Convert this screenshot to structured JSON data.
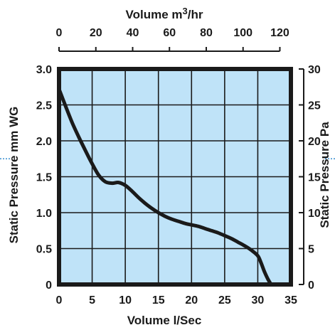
{
  "chart_data": {
    "type": "line",
    "title": "",
    "xlabel": "Volume l/Sec",
    "ylabel": "Static Pressure mm WG",
    "x2label_prefix": "Volume m",
    "x2label_sup": "3",
    "x2label_suffix": "/hr",
    "y2label": "Static Pressure Pa",
    "xlim": [
      0,
      35
    ],
    "ylim": [
      0,
      3.0
    ],
    "x2lim": [
      0,
      126
    ],
    "y2lim": [
      0,
      30
    ],
    "xticks": [
      0,
      5,
      10,
      15,
      20,
      25,
      30,
      35
    ],
    "yticks": [
      0,
      0.5,
      1.0,
      1.5,
      2.0,
      2.5,
      3.0
    ],
    "x2ticks": [
      0,
      20,
      40,
      60,
      80,
      100,
      120
    ],
    "y2ticks": [
      0,
      5,
      10,
      15,
      20,
      25,
      30
    ],
    "xtick_labels": [
      "0",
      "5",
      "10",
      "15",
      "20",
      "25",
      "30",
      "35"
    ],
    "ytick_labels": [
      "0",
      "0.5",
      "1.0",
      "1.5",
      "2.0",
      "2.5",
      "3.0"
    ],
    "x2tick_labels": [
      "0",
      "20",
      "40",
      "60",
      "80",
      "100",
      "120"
    ],
    "y2tick_labels": [
      "0",
      "5",
      "10",
      "15",
      "20",
      "25",
      "30"
    ],
    "grid": true,
    "series": [
      {
        "x": [
          0,
          1,
          2,
          3,
          4,
          5,
          6,
          7,
          8,
          9,
          10,
          11,
          12,
          13,
          14,
          15,
          16,
          17,
          18,
          19,
          20,
          21,
          22,
          23,
          24,
          25,
          26,
          27,
          28,
          29,
          30,
          30.5,
          31,
          31.5,
          32
        ],
        "y": [
          2.72,
          2.48,
          2.25,
          2.05,
          1.86,
          1.68,
          1.52,
          1.43,
          1.41,
          1.42,
          1.38,
          1.3,
          1.21,
          1.13,
          1.06,
          1.0,
          0.95,
          0.91,
          0.88,
          0.85,
          0.83,
          0.81,
          0.78,
          0.75,
          0.72,
          0.68,
          0.64,
          0.59,
          0.54,
          0.48,
          0.4,
          0.3,
          0.18,
          0.08,
          0.0
        ]
      }
    ],
    "colors": {
      "plot_background": "#bfe3f8",
      "grid": "#1a1a1a",
      "curve": "#1a1a1a",
      "frame": "#1a1a1a",
      "edge_marker": "#3a8fd0"
    }
  }
}
